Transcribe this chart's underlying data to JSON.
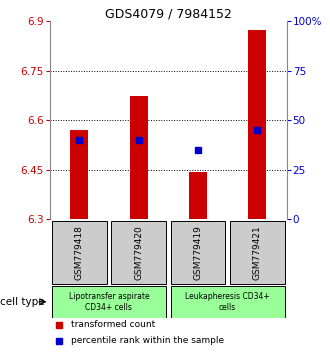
{
  "title": "GDS4079 / 7984152",
  "samples": [
    "GSM779418",
    "GSM779420",
    "GSM779419",
    "GSM779421"
  ],
  "red_values": [
    6.572,
    6.672,
    6.443,
    6.873
  ],
  "blue_percentiles": [
    40,
    40,
    35,
    45
  ],
  "ymin": 6.3,
  "ymax": 6.9,
  "y_ticks": [
    6.3,
    6.45,
    6.6,
    6.75,
    6.9
  ],
  "y_tick_labels": [
    "6.3",
    "6.45",
    "6.6",
    "6.75",
    "6.9"
  ],
  "right_ticks": [
    0,
    25,
    50,
    75,
    100
  ],
  "right_tick_labels": [
    "0",
    "25",
    "50",
    "75",
    "100%"
  ],
  "group1_label": "Lipotransfer aspirate\nCD34+ cells",
  "group2_label": "Leukapheresis CD34+\ncells",
  "group1_indices": [
    0,
    1
  ],
  "group2_indices": [
    2,
    3
  ],
  "cell_type_label": "cell type",
  "legend_red": "transformed count",
  "legend_blue": "percentile rank within the sample",
  "bar_color": "#cc0000",
  "dot_color": "#0000cc",
  "sample_box_bg": "#cccccc",
  "group1_cell_bg": "#99ff99",
  "group2_cell_bg": "#99ff99",
  "ytick_color": "#cc0000",
  "right_tick_color": "#0000cc",
  "title_fontsize": 9,
  "tick_fontsize": 7.5,
  "sample_fontsize": 6.5,
  "group_label_fontsize": 5.5,
  "legend_fontsize": 6.5,
  "cell_type_fontsize": 7.5
}
